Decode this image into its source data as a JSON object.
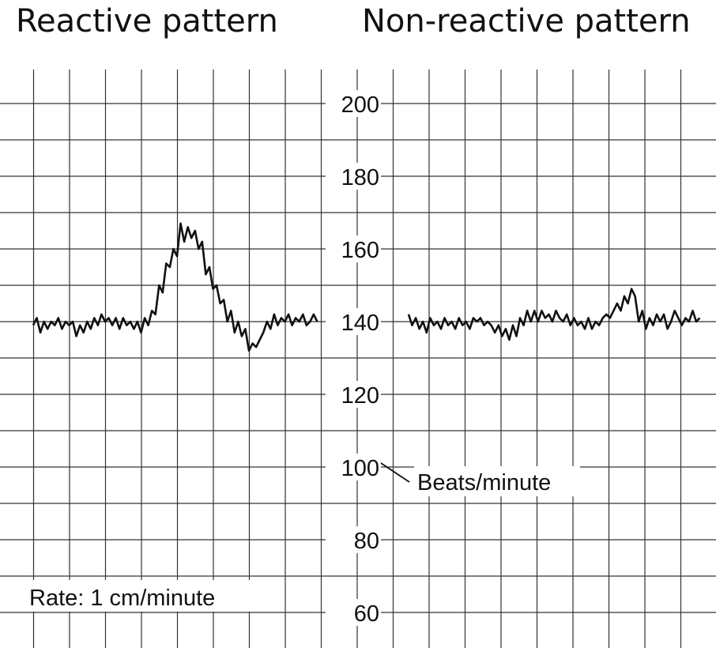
{
  "chart_data": [
    {
      "type": "line",
      "title": "Reactive pattern",
      "ylabel": "Beats/minute",
      "ylim": [
        50,
        210
      ],
      "yticks": [
        60,
        80,
        100,
        120,
        140,
        160,
        180,
        200
      ],
      "x_units": "minutes",
      "x": [
        0.0,
        0.1,
        0.2,
        0.3,
        0.4,
        0.5,
        0.6,
        0.7,
        0.8,
        0.9,
        1.0,
        1.1,
        1.2,
        1.3,
        1.4,
        1.5,
        1.6,
        1.7,
        1.8,
        1.9,
        2.0,
        2.1,
        2.2,
        2.3,
        2.4,
        2.5,
        2.6,
        2.7,
        2.8,
        2.9,
        3.0,
        3.1,
        3.2,
        3.3,
        3.4,
        3.5,
        3.6,
        3.7,
        3.8,
        3.9,
        4.0,
        4.1,
        4.2,
        4.3,
        4.4,
        4.5,
        4.6,
        4.7,
        4.8,
        4.9,
        5.0,
        5.1,
        5.2,
        5.3,
        5.4,
        5.5,
        5.6,
        5.7,
        5.8,
        5.9,
        6.0,
        6.1,
        6.2,
        6.3,
        6.4,
        6.5,
        6.6,
        6.7,
        6.8,
        6.9,
        7.0,
        7.1,
        7.2,
        7.3,
        7.4,
        7.5,
        7.6,
        7.7,
        7.8,
        7.9
      ],
      "values": [
        139,
        141,
        137,
        140,
        138,
        140,
        139,
        141,
        138,
        140,
        139,
        140,
        136,
        139,
        137,
        140,
        138,
        141,
        139,
        142,
        140,
        141,
        139,
        141,
        138,
        141,
        139,
        140,
        138,
        140,
        137,
        141,
        139,
        143,
        142,
        150,
        148,
        156,
        155,
        160,
        158,
        167,
        162,
        166,
        163,
        165,
        160,
        162,
        153,
        155,
        149,
        150,
        145,
        146,
        140,
        143,
        137,
        140,
        136,
        138,
        132,
        134,
        133,
        135,
        137,
        140,
        138,
        142,
        139,
        141,
        140,
        142,
        139,
        141,
        140,
        142,
        139,
        140,
        142,
        140
      ]
    },
    {
      "type": "line",
      "title": "Non-reactive pattern",
      "ylim": [
        50,
        210
      ],
      "x_units": "minutes",
      "x": [
        0.0,
        0.1,
        0.2,
        0.3,
        0.4,
        0.5,
        0.6,
        0.7,
        0.8,
        0.9,
        1.0,
        1.1,
        1.2,
        1.3,
        1.4,
        1.5,
        1.6,
        1.7,
        1.8,
        1.9,
        2.0,
        2.1,
        2.2,
        2.3,
        2.4,
        2.5,
        2.6,
        2.7,
        2.8,
        2.9,
        3.0,
        3.1,
        3.2,
        3.3,
        3.4,
        3.5,
        3.6,
        3.7,
        3.8,
        3.9,
        4.0,
        4.1,
        4.2,
        4.3,
        4.4,
        4.5,
        4.6,
        4.7,
        4.8,
        4.9,
        5.0,
        5.1,
        5.2,
        5.3,
        5.4,
        5.5,
        5.6,
        5.7,
        5.8,
        5.9,
        6.0,
        6.1,
        6.2,
        6.3,
        6.4,
        6.5,
        6.6,
        6.7,
        6.8,
        6.9,
        7.0,
        7.1,
        7.2,
        7.3,
        7.4,
        7.5,
        7.6,
        7.7,
        7.8,
        7.9,
        8.0,
        8.1
      ],
      "values": [
        142,
        139,
        141,
        138,
        140,
        137,
        141,
        139,
        140,
        138,
        141,
        139,
        140,
        138,
        141,
        139,
        140,
        138,
        141,
        140,
        141,
        139,
        140,
        139,
        137,
        139,
        136,
        138,
        135,
        139,
        136,
        141,
        139,
        143,
        140,
        143,
        140,
        143,
        141,
        142,
        140,
        143,
        141,
        140,
        142,
        139,
        141,
        139,
        140,
        138,
        141,
        138,
        140,
        139,
        141,
        142,
        141,
        143,
        145,
        143,
        147,
        145,
        149,
        147,
        140,
        143,
        138,
        141,
        139,
        142,
        140,
        142,
        138,
        140,
        143,
        141,
        139,
        141,
        140,
        143,
        140,
        141
      ]
    }
  ],
  "axis": {
    "tick_labels": [
      "200",
      "180",
      "160",
      "140",
      "120",
      "100",
      "80",
      "60"
    ]
  },
  "annotations": {
    "units": "Beats/minute",
    "rate": "Rate: 1 cm/minute"
  }
}
